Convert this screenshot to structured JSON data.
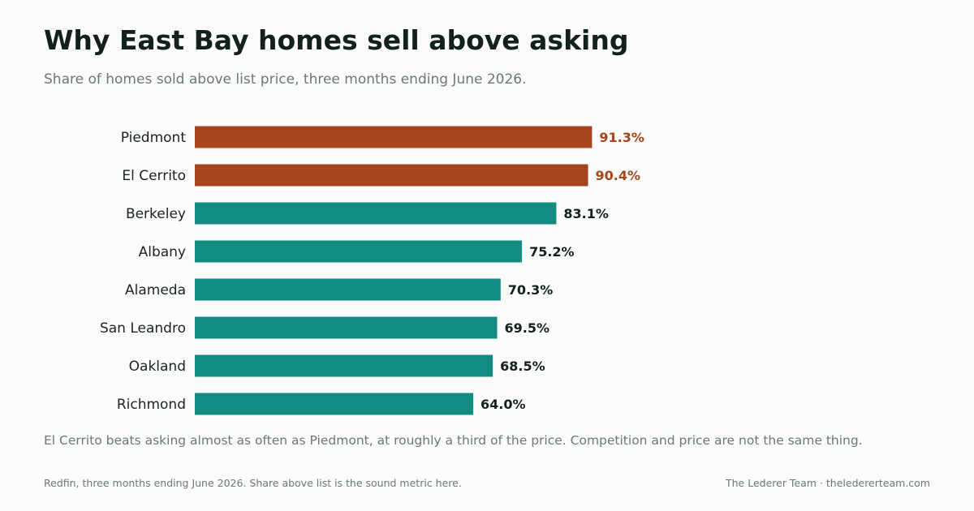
{
  "header": {
    "title": "Why East Bay homes sell above asking",
    "subtitle": "Share of homes sold above list price, three months ending June 2026."
  },
  "insight": "El Cerrito beats asking almost as often as Piedmont, at roughly a third of the price. Competition and price are not the same thing.",
  "footer": {
    "source": "Redfin, three months ending June 2026. Share above list is the sound metric here.",
    "brand": "The Lederer Team  ·  thelédererteam.com"
  },
  "colors": {
    "highlight": "#a5441d",
    "base": "#118c80",
    "label_text": "#1b2420",
    "value_text": "#13211c"
  },
  "chart_data": {
    "type": "bar",
    "orientation": "horizontal",
    "categories": [
      "Piedmont",
      "El Cerrito",
      "Berkeley",
      "Albany",
      "Alameda",
      "San Leandro",
      "Oakland",
      "Richmond"
    ],
    "values": [
      91.3,
      90.4,
      83.1,
      75.2,
      70.3,
      69.5,
      68.5,
      64.0
    ],
    "value_labels": [
      "91.3%",
      "90.4%",
      "83.1%",
      "75.2%",
      "70.3%",
      "69.5%",
      "68.5%",
      "64.0%"
    ],
    "highlighted": [
      "Piedmont",
      "El Cerrito"
    ],
    "xlim": [
      0,
      100
    ],
    "grid": false,
    "legend": "none"
  }
}
